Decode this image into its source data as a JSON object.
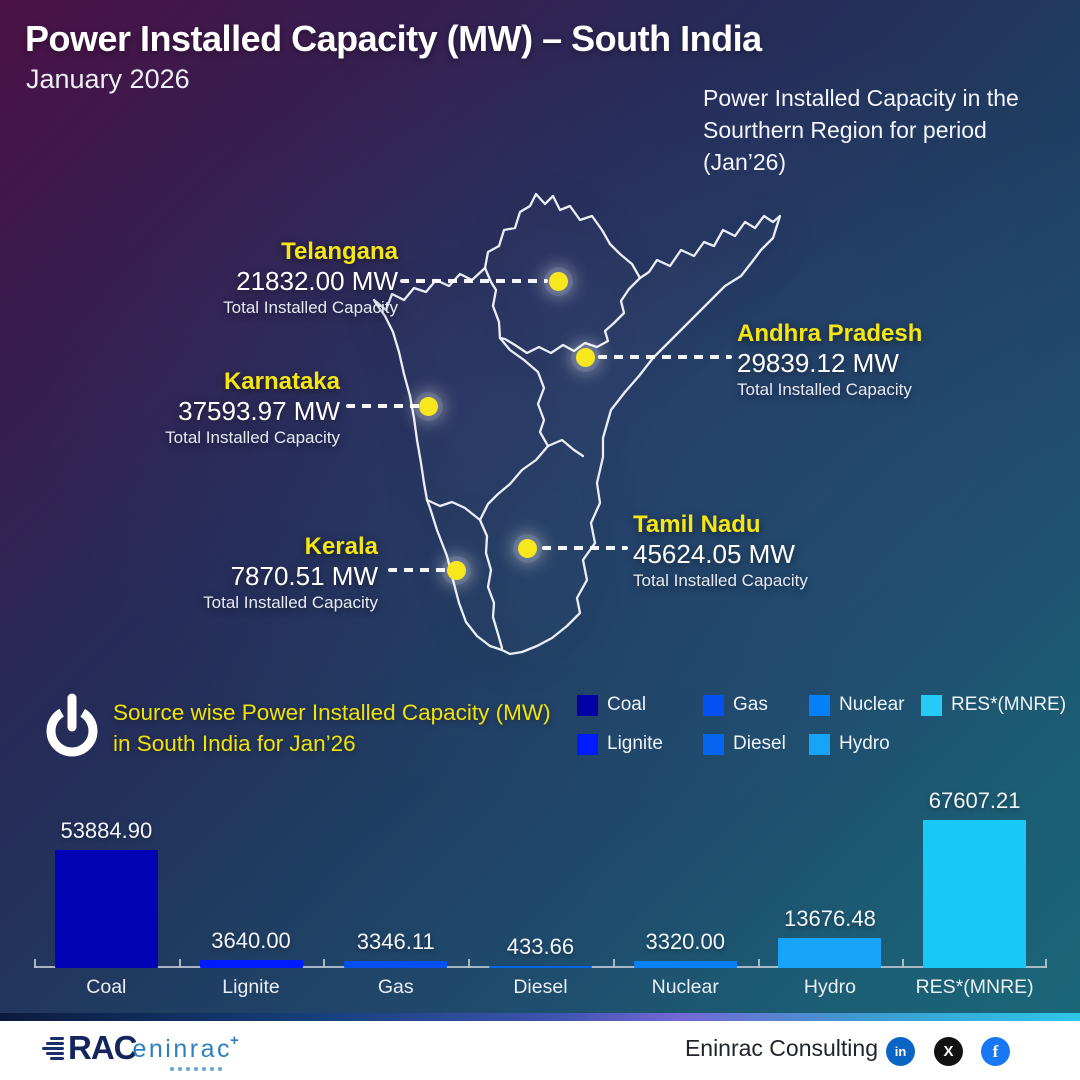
{
  "header": {
    "title": "Power Installed Capacity (MW) – South India",
    "subtitle": "January 2026",
    "note": "Power Installed Capacity in the Sourthern Region for period (Jan’26)"
  },
  "map": {
    "states": [
      {
        "id": "telangana",
        "name": "Telangana",
        "value": "21832.00 MW",
        "caption": "Total Installed Capacity"
      },
      {
        "id": "andhra-pradesh",
        "name": "Andhra Pradesh",
        "value": "29839.12 MW",
        "caption": "Total Installed Capacity"
      },
      {
        "id": "karnataka",
        "name": "Karnataka",
        "value": "37593.97 MW",
        "caption": "Total Installed Capacity"
      },
      {
        "id": "kerala",
        "name": "Kerala",
        "value": "7870.51 MW",
        "caption": "Total Installed Capacity"
      },
      {
        "id": "tamil-nadu",
        "name": "Tamil Nadu",
        "value": "45624.05 MW",
        "caption": "Total Installed Capacity"
      }
    ],
    "marker_color": "#F9E71E"
  },
  "source_section": {
    "heading_line1": "Source wise Power Installed Capacity (MW)",
    "heading_line2": "in South India for Jan’26",
    "heading_color": "#F2E205"
  },
  "legend": {
    "items": [
      {
        "label": "Coal",
        "color": "#0000A4"
      },
      {
        "label": "Gas",
        "color": "#0450F0"
      },
      {
        "label": "Nuclear",
        "color": "#077FF6"
      },
      {
        "label": "RES*(MNRE)",
        "color": "#25CBF4"
      },
      {
        "label": "Lignite",
        "color": "#001BFF"
      },
      {
        "label": "Diesel",
        "color": "#0565EF"
      },
      {
        "label": "Hydro",
        "color": "#16A3F8"
      }
    ]
  },
  "chart_data": {
    "type": "bar",
    "title": "Source wise Power Installed Capacity (MW) in South India for Jan’26",
    "categories": [
      "Coal",
      "Lignite",
      "Gas",
      "Diesel",
      "Nuclear",
      "Hydro",
      "RES*(MNRE)"
    ],
    "values": [
      53884.9,
      3640.0,
      3346.11,
      433.66,
      3320.0,
      13676.48,
      67607.21
    ],
    "value_labels": [
      "53884.90",
      "3640.00",
      "3346.11",
      "433.66",
      "3320.00",
      "13676.48",
      "67607.21"
    ],
    "colors": [
      "#0103B4",
      "#001BFF",
      "#0450F0",
      "#0565EF",
      "#077FF6",
      "#16A3F8",
      "#19C8F7"
    ],
    "xlabel": "",
    "ylabel": "",
    "ylim": [
      0,
      70000
    ],
    "grid": false,
    "value_labels_position": "above-bars",
    "legend_position": "top-right"
  },
  "footer": {
    "brand_prefix": "RAC",
    "brand_name": "eninrac",
    "brand_plus": "+",
    "company": "Eninrac Consulting",
    "social": [
      {
        "name": "linkedin",
        "glyph": "in",
        "color": "#0A66C2"
      },
      {
        "name": "x",
        "glyph": "X",
        "color": "#121212"
      },
      {
        "name": "facebook",
        "glyph": "f",
        "color": "#1877F2"
      }
    ]
  }
}
